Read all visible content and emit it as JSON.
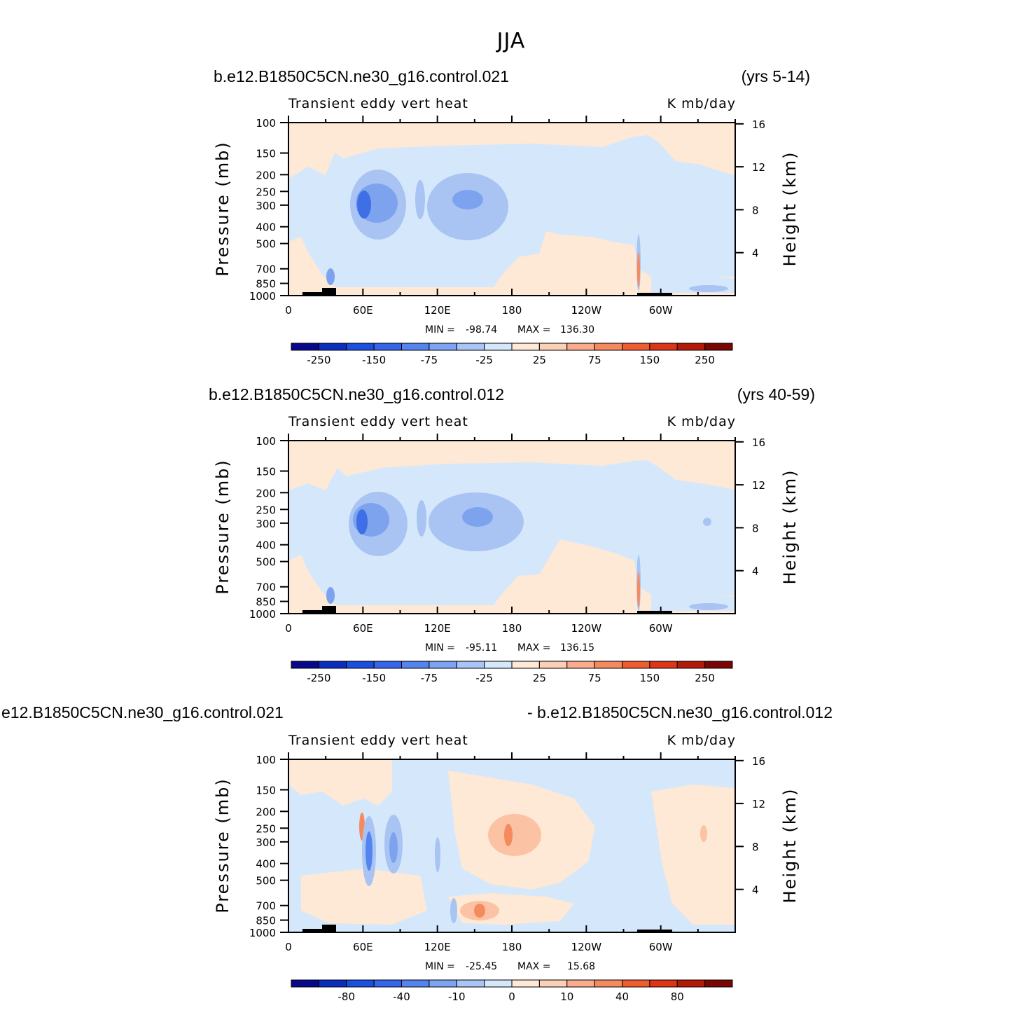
{
  "figure_title": "JJA",
  "colors": {
    "light_orange": "#fee8d6",
    "light_blue": "#d5e8fb",
    "mid_blue": "#a9c4f3",
    "blue": "#7ea3ee",
    "deep_blue": "#3f6fe6",
    "orange": "#fbc3a3",
    "dark_orange": "#f58a5e",
    "terrain": "#000000"
  },
  "chart_data": [
    {
      "type": "heatmap",
      "header_left": "b.e12.B1850C5CN.ne30_g16.control.021",
      "header_right": "(yrs 5-14)",
      "title": "Transient eddy vert heat",
      "units": "K mb/day",
      "ylabel": "Pressure (mb)",
      "ylabel_right": "Height (km)",
      "x_ticks": [
        "0",
        "60E",
        "120E",
        "180",
        "120W",
        "60W"
      ],
      "y_ticks": [
        "100",
        "150",
        "200",
        "250",
        "300",
        "400",
        "500",
        "700",
        "850",
        "1000"
      ],
      "y_ticks_right": [
        "16",
        "12",
        "8",
        "4"
      ],
      "y_scale": "log",
      "xlim": [
        0,
        360
      ],
      "ylim": [
        1000,
        100
      ],
      "min_label": "MIN =",
      "min_value": "-98.74",
      "max_label": "MAX =",
      "max_value": "136.30",
      "colorbar_labels": [
        "-250",
        "-150",
        "-75",
        "-25",
        "25",
        "75",
        "150",
        "250"
      ]
    },
    {
      "type": "heatmap",
      "header_left": "b.e12.B1850C5CN.ne30_g16.control.012",
      "header_right": "(yrs 40-59)",
      "title": "Transient eddy vert heat",
      "units": "K mb/day",
      "ylabel": "Pressure (mb)",
      "ylabel_right": "Height (km)",
      "x_ticks": [
        "0",
        "60E",
        "120E",
        "180",
        "120W",
        "60W"
      ],
      "y_ticks": [
        "100",
        "150",
        "200",
        "250",
        "300",
        "400",
        "500",
        "700",
        "850",
        "1000"
      ],
      "y_ticks_right": [
        "16",
        "12",
        "8",
        "4"
      ],
      "y_scale": "log",
      "xlim": [
        0,
        360
      ],
      "ylim": [
        1000,
        100
      ],
      "min_label": "MIN =",
      "min_value": "-95.11",
      "max_label": "MAX =",
      "max_value": "136.15",
      "colorbar_labels": [
        "-250",
        "-150",
        "-75",
        "-25",
        "25",
        "75",
        "150",
        "250"
      ]
    },
    {
      "type": "heatmap",
      "header_left": "e12.B1850C5CN.ne30_g16.control.021",
      "header_right": "- b.e12.B1850C5CN.ne30_g16.control.012",
      "title": "Transient eddy vert heat",
      "units": "K mb/day",
      "ylabel": "Pressure (mb)",
      "ylabel_right": "Height (km)",
      "x_ticks": [
        "0",
        "60E",
        "120E",
        "180",
        "120W",
        "60W"
      ],
      "y_ticks": [
        "100",
        "150",
        "200",
        "250",
        "300",
        "400",
        "500",
        "700",
        "850",
        "1000"
      ],
      "y_ticks_right": [
        "16",
        "12",
        "8",
        "4"
      ],
      "y_scale": "log",
      "xlim": [
        0,
        360
      ],
      "ylim": [
        1000,
        100
      ],
      "min_label": "MIN =",
      "min_value": "-25.45",
      "max_label": "MAX =",
      "max_value": "15.68",
      "colorbar_labels": [
        "-80",
        "-40",
        "-10",
        "0",
        "10",
        "40",
        "80"
      ]
    }
  ],
  "colorbar_colors": [
    "#08088a",
    "#0a2fbf",
    "#1a4fe0",
    "#3565ea",
    "#5484ef",
    "#7ea3f3",
    "#a9c4f6",
    "#d5e8fb",
    "#fee8d6",
    "#fcd0b6",
    "#f9ab8c",
    "#f58a5e",
    "#f05b30",
    "#dd3515",
    "#b51a08",
    "#7b0502"
  ]
}
